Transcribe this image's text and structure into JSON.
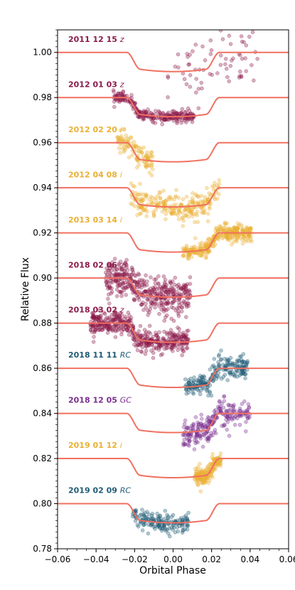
{
  "chart_data": {
    "type": "scatter",
    "xlabel": "Orbital Phase",
    "ylabel": "Relative Flux",
    "xlim": [
      -0.06,
      0.06
    ],
    "ylim": [
      0.78,
      1.01
    ],
    "xticks": [
      -0.06,
      -0.04,
      -0.02,
      0.0,
      0.02,
      0.04,
      0.06
    ],
    "xtick_labels": [
      "−0.06",
      "−0.04",
      "−0.02",
      "0.00",
      "0.02",
      "0.04",
      "0.06"
    ],
    "yticks": [
      0.78,
      0.8,
      0.82,
      0.84,
      0.86,
      0.88,
      0.9,
      0.92,
      0.94,
      0.96,
      0.98,
      1.0
    ],
    "ytick_labels": [
      "0.78",
      "0.80",
      "0.82",
      "0.84",
      "0.86",
      "0.88",
      "0.90",
      "0.92",
      "0.94",
      "0.96",
      "0.98",
      "1.00"
    ],
    "grid": false,
    "model_color": "#f07060",
    "transit_depth": 0.0085,
    "series": [
      {
        "name": "2011 12 15",
        "filter": "z",
        "baseline": 1.0,
        "color": "#8b1a4a",
        "x_range": [
          -0.003,
          0.044
        ],
        "count": 70,
        "scatter": 0.007
      },
      {
        "name": "2012 01 03",
        "filter": "z",
        "baseline": 0.98,
        "color": "#8b1a4a",
        "x_range": [
          -0.031,
          0.011
        ],
        "count": 260,
        "scatter": 0.0012
      },
      {
        "name": "2012 02 20",
        "filter": "i",
        "baseline": 0.96,
        "color": "#eab033",
        "x_range": [
          -0.029,
          -0.01
        ],
        "count": 110,
        "scatter": 0.0025
      },
      {
        "name": "2012 04 08",
        "filter": "i",
        "baseline": 0.94,
        "color": "#eab033",
        "x_range": [
          -0.022,
          0.024
        ],
        "count": 260,
        "scatter": 0.003
      },
      {
        "name": "2013 03 14",
        "filter": "i",
        "baseline": 0.92,
        "color": "#eab033",
        "x_range": [
          0.005,
          0.041
        ],
        "count": 320,
        "scatter": 0.0018
      },
      {
        "name": "2018 02 06",
        "filter": "z",
        "baseline": 0.9,
        "color": "#8b1a4a",
        "x_range": [
          -0.035,
          0.009
        ],
        "count": 420,
        "scatter": 0.004
      },
      {
        "name": "2018 03 02",
        "filter": "z",
        "baseline": 0.88,
        "color": "#8b1a4a",
        "x_range": [
          -0.043,
          0.008
        ],
        "count": 460,
        "scatter": 0.0025
      },
      {
        "name": "2018 11 11",
        "filter": "RC",
        "baseline": 0.86,
        "color": "#1f5b76",
        "x_range": [
          0.006,
          0.039
        ],
        "count": 230,
        "scatter": 0.0025
      },
      {
        "name": "2018 12 05",
        "filter": "GC",
        "baseline": 0.84,
        "color": "#7a2e8e",
        "x_range": [
          0.005,
          0.04
        ],
        "count": 240,
        "scatter": 0.003
      },
      {
        "name": "2019 01 12",
        "filter": "i",
        "baseline": 0.82,
        "color": "#eab033",
        "x_range": [
          0.011,
          0.025
        ],
        "count": 190,
        "scatter": 0.002
      },
      {
        "name": "2019 02 09",
        "filter": "RC",
        "baseline": 0.8,
        "color": "#1f5b76",
        "x_range": [
          -0.021,
          0.008
        ],
        "count": 170,
        "scatter": 0.002
      }
    ]
  }
}
